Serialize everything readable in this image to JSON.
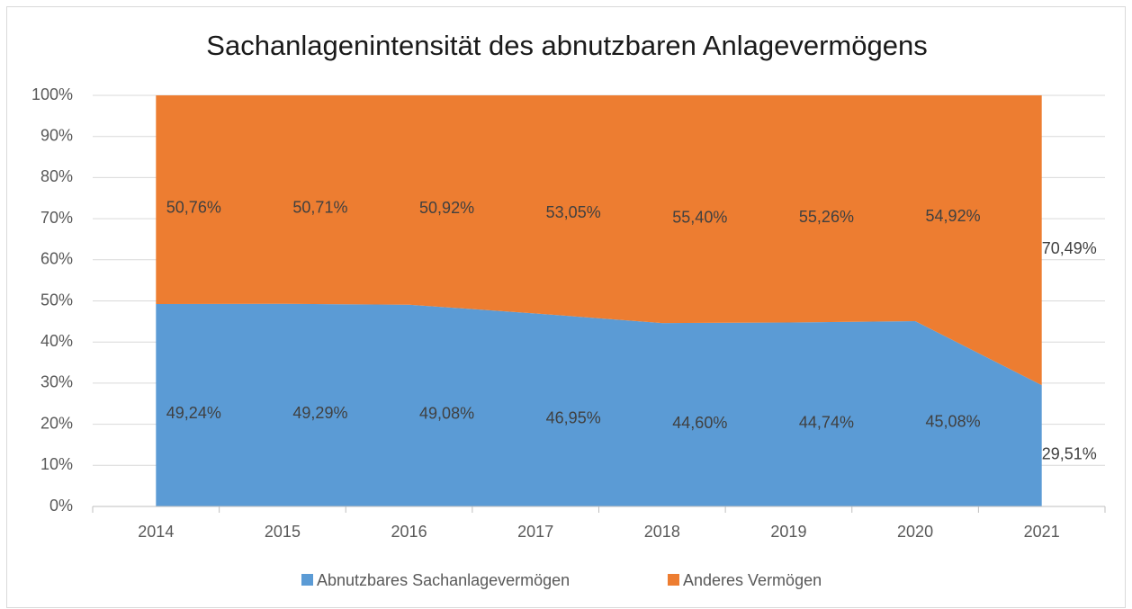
{
  "chart_data": {
    "type": "stacked_area_100",
    "title": "Sachanlagenintensität des abnutzbaren Anlagevermögens",
    "categories": [
      "2014",
      "2015",
      "2016",
      "2017",
      "2018",
      "2019",
      "2020",
      "2021"
    ],
    "series": [
      {
        "name": "Abnutzbares Sachanlagevermögen",
        "color": "#5b9bd5",
        "values": [
          49.24,
          49.29,
          49.08,
          46.95,
          44.6,
          44.74,
          45.08,
          29.51
        ],
        "value_labels": [
          "49,24%",
          "49,29%",
          "49,08%",
          "46,95%",
          "44,60%",
          "44,74%",
          "45,08%",
          "29,51%"
        ]
      },
      {
        "name": "Anderes Vermögen",
        "color": "#ed7d31",
        "values": [
          50.76,
          50.71,
          50.92,
          53.05,
          55.4,
          55.26,
          54.92,
          70.49
        ],
        "value_labels": [
          "50,76%",
          "50,71%",
          "50,92%",
          "53,05%",
          "55,40%",
          "55,26%",
          "54,92%",
          "70,49%"
        ]
      }
    ],
    "ylim": [
      0,
      100
    ],
    "yticks": [
      {
        "value": 0,
        "label": "0%"
      },
      {
        "value": 10,
        "label": "10%"
      },
      {
        "value": 20,
        "label": "20%"
      },
      {
        "value": 30,
        "label": "30%"
      },
      {
        "value": 40,
        "label": "40%"
      },
      {
        "value": 50,
        "label": "50%"
      },
      {
        "value": 60,
        "label": "60%"
      },
      {
        "value": 70,
        "label": "70%"
      },
      {
        "value": 80,
        "label": "80%"
      },
      {
        "value": 90,
        "label": "90%"
      },
      {
        "value": 100,
        "label": "100%"
      }
    ],
    "grid": true,
    "legend": "bottom"
  }
}
